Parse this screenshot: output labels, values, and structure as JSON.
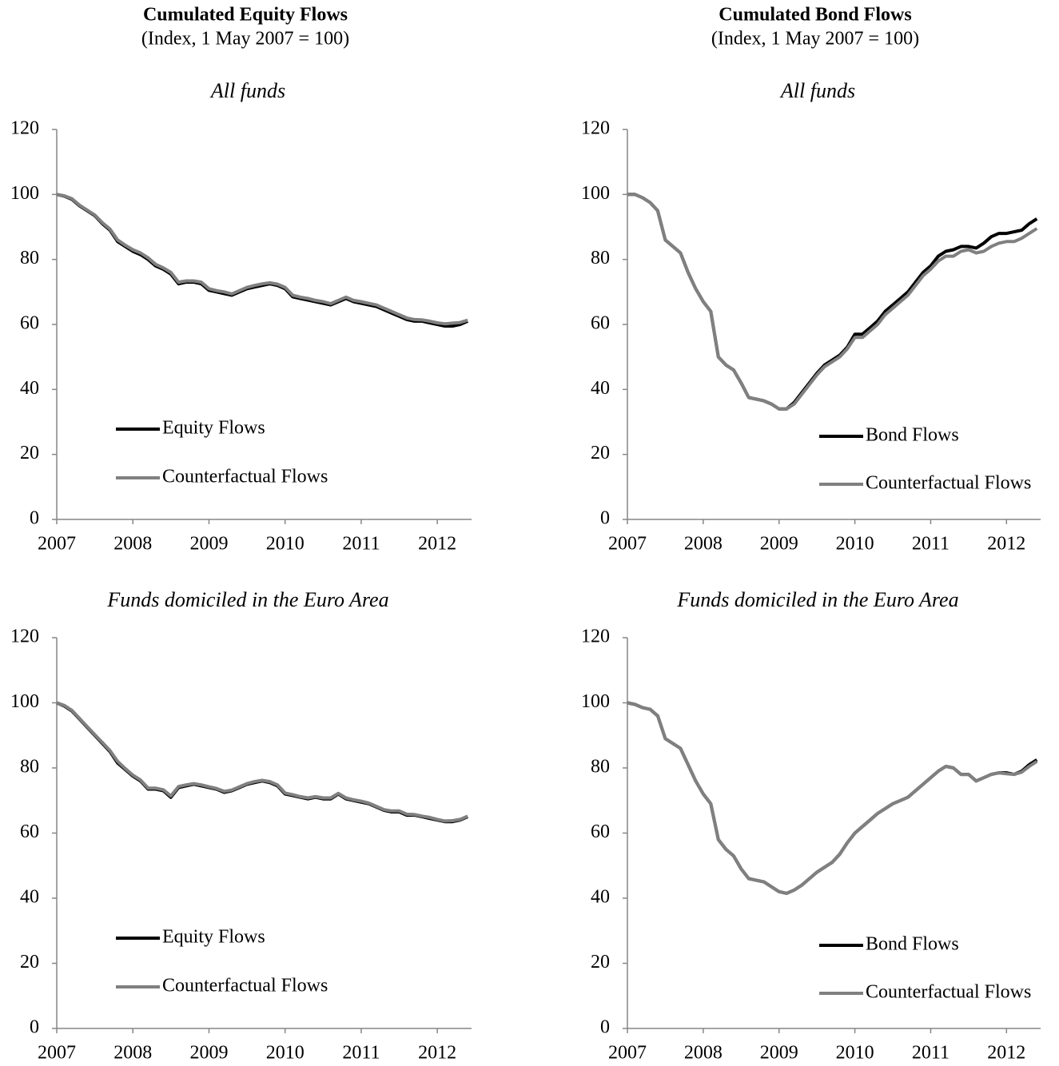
{
  "columns": [
    {
      "title": "Cumulated Equity Flows",
      "subtitle": "(Index, 1 May 2007 = 100)"
    },
    {
      "title": "Cumulated Bond Flows",
      "subtitle": "(Index, 1 May 2007 = 100)"
    }
  ],
  "chart_data": [
    {
      "type": "line",
      "title": "All funds",
      "legend": "lower left",
      "xlim": [
        2007,
        2012.45
      ],
      "xticks": [
        2007,
        2008,
        2009,
        2010,
        2011,
        2012
      ],
      "ylim": [
        0,
        120
      ],
      "yticks": [
        0,
        20,
        40,
        60,
        80,
        100,
        120
      ],
      "x": [
        2007,
        2007.1,
        2007.2,
        2007.3,
        2007.4,
        2007.5,
        2007.6,
        2007.7,
        2007.8,
        2007.9,
        2008,
        2008.1,
        2008.2,
        2008.3,
        2008.4,
        2008.5,
        2008.6,
        2008.7,
        2008.8,
        2008.9,
        2009,
        2009.1,
        2009.2,
        2009.3,
        2009.4,
        2009.5,
        2009.6,
        2009.7,
        2009.8,
        2009.9,
        2010,
        2010.1,
        2010.2,
        2010.3,
        2010.4,
        2010.5,
        2010.6,
        2010.7,
        2010.8,
        2010.9,
        2011,
        2011.1,
        2011.2,
        2011.3,
        2011.4,
        2011.5,
        2011.6,
        2011.7,
        2011.8,
        2011.9,
        2012,
        2012.1,
        2012.2,
        2012.3,
        2012.4
      ],
      "series": [
        {
          "name": "Equity Flows",
          "color": "#000000",
          "values": [
            100,
            99.5,
            98.5,
            96.5,
            95,
            93.5,
            91,
            89,
            85.5,
            84,
            82.5,
            81.5,
            80,
            78,
            77,
            75.5,
            72.5,
            73,
            73,
            72.5,
            70.5,
            70,
            69.5,
            69,
            70,
            71,
            71.5,
            72,
            72.5,
            72,
            71,
            68.5,
            68,
            67.5,
            67,
            66.5,
            66,
            67,
            68,
            67,
            66.5,
            66,
            65.5,
            64.5,
            63.5,
            62.5,
            61.5,
            61,
            61,
            60.5,
            60,
            59.5,
            59.5,
            60,
            61
          ]
        },
        {
          "name": "Counterfactual Flows",
          "color": "#808080",
          "values": [
            100,
            99.6,
            98.7,
            96.7,
            95.2,
            93.7,
            91.3,
            89.3,
            86,
            84.4,
            83,
            82,
            80.5,
            78.5,
            77.4,
            76,
            73,
            73.4,
            73.4,
            73,
            71,
            70.4,
            70,
            69.4,
            70.4,
            71.4,
            72,
            72.5,
            72.8,
            72.4,
            71.4,
            69,
            68.4,
            68,
            67.4,
            67,
            66.4,
            67.4,
            68.4,
            67.4,
            67,
            66.5,
            66,
            65,
            64,
            63,
            62,
            61.5,
            61.4,
            61,
            60.5,
            60.2,
            60.4,
            60.6,
            61.3
          ]
        }
      ]
    },
    {
      "type": "line",
      "title": "All funds",
      "legend": "lower right",
      "xlim": [
        2007,
        2012.45
      ],
      "xticks": [
        2007,
        2008,
        2009,
        2010,
        2011,
        2012
      ],
      "ylim": [
        0,
        120
      ],
      "yticks": [
        0,
        20,
        40,
        60,
        80,
        100,
        120
      ],
      "x": [
        2007,
        2007.1,
        2007.2,
        2007.3,
        2007.4,
        2007.5,
        2007.6,
        2007.7,
        2007.8,
        2007.9,
        2008,
        2008.1,
        2008.2,
        2008.3,
        2008.4,
        2008.5,
        2008.6,
        2008.7,
        2008.8,
        2008.9,
        2009,
        2009.1,
        2009.2,
        2009.3,
        2009.4,
        2009.5,
        2009.6,
        2009.7,
        2009.8,
        2009.9,
        2010,
        2010.1,
        2010.2,
        2010.3,
        2010.4,
        2010.5,
        2010.6,
        2010.7,
        2010.8,
        2010.9,
        2011,
        2011.1,
        2011.2,
        2011.3,
        2011.4,
        2011.5,
        2011.6,
        2011.7,
        2011.8,
        2011.9,
        2012,
        2012.1,
        2012.2,
        2012.3,
        2012.4
      ],
      "series": [
        {
          "name": "Bond Flows",
          "color": "#000000",
          "values": [
            100,
            100,
            99,
            97.5,
            95,
            86,
            84,
            82,
            76,
            71,
            67,
            64,
            50,
            47.5,
            46,
            42,
            37.5,
            37,
            36.5,
            35.5,
            34,
            34,
            36,
            39,
            42,
            45,
            47.5,
            49,
            50.5,
            53,
            57,
            57,
            59,
            61,
            64,
            66,
            68,
            70,
            73,
            76,
            78,
            81,
            82.5,
            83,
            84,
            84,
            83.5,
            85,
            87,
            88,
            88,
            88.5,
            89,
            91,
            92.5
          ]
        },
        {
          "name": "Counterfactual Flows",
          "color": "#808080",
          "values": [
            100,
            100,
            99,
            97.5,
            95,
            86,
            84,
            82,
            76,
            71,
            67,
            64,
            50,
            47.5,
            46,
            42,
            37.5,
            37,
            36.5,
            35.5,
            34,
            34,
            35.5,
            38.5,
            41.5,
            44.5,
            47,
            48.5,
            50,
            52.5,
            56,
            56,
            58,
            60,
            63,
            65,
            67,
            69,
            72,
            75,
            77,
            79.5,
            81,
            81,
            82.5,
            83,
            82,
            82.5,
            84,
            85,
            85.5,
            85.5,
            86.5,
            88,
            89.5
          ]
        }
      ]
    },
    {
      "type": "line",
      "title": "Funds domiciled in the Euro Area",
      "legend": "lower left",
      "xlim": [
        2007,
        2012.45
      ],
      "xticks": [
        2007,
        2008,
        2009,
        2010,
        2011,
        2012
      ],
      "ylim": [
        0,
        120
      ],
      "yticks": [
        0,
        20,
        40,
        60,
        80,
        100,
        120
      ],
      "x": [
        2007,
        2007.1,
        2007.2,
        2007.3,
        2007.4,
        2007.5,
        2007.6,
        2007.7,
        2007.8,
        2007.9,
        2008,
        2008.1,
        2008.2,
        2008.3,
        2008.4,
        2008.5,
        2008.6,
        2008.7,
        2008.8,
        2008.9,
        2009,
        2009.1,
        2009.2,
        2009.3,
        2009.4,
        2009.5,
        2009.6,
        2009.7,
        2009.8,
        2009.9,
        2010,
        2010.1,
        2010.2,
        2010.3,
        2010.4,
        2010.5,
        2010.6,
        2010.7,
        2010.8,
        2010.9,
        2011,
        2011.1,
        2011.2,
        2011.3,
        2011.4,
        2011.5,
        2011.6,
        2011.7,
        2011.8,
        2011.9,
        2012,
        2012.1,
        2012.2,
        2012.3,
        2012.4
      ],
      "series": [
        {
          "name": "Equity Flows",
          "color": "#000000",
          "values": [
            100,
            99,
            97.5,
            95,
            92.5,
            90,
            87.5,
            85,
            81.5,
            79.5,
            77.5,
            76,
            73.5,
            73.5,
            73,
            71,
            74,
            74.5,
            75,
            74.5,
            74,
            73.5,
            72.5,
            73,
            74,
            75,
            75.5,
            76,
            75.5,
            74.5,
            72,
            71.5,
            71,
            70.5,
            71,
            70.5,
            70.5,
            72,
            70.5,
            70,
            69.5,
            69,
            68,
            67,
            66.5,
            66.5,
            65.5,
            65.5,
            65,
            64.5,
            64,
            63.5,
            63.5,
            64,
            65
          ]
        },
        {
          "name": "Counterfactual Flows",
          "color": "#808080",
          "values": [
            100,
            99.2,
            97.7,
            95.2,
            92.7,
            90.2,
            87.8,
            85.3,
            82,
            79.8,
            77.8,
            76.3,
            73.8,
            73.8,
            73.3,
            71.4,
            74.3,
            74.8,
            75.2,
            74.8,
            74.2,
            73.7,
            72.8,
            73.2,
            74.2,
            75.2,
            75.8,
            76.2,
            75.8,
            74.8,
            72.3,
            71.8,
            71.2,
            70.8,
            71.2,
            70.8,
            70.8,
            72.2,
            70.8,
            70.2,
            69.8,
            69.2,
            68.2,
            67.2,
            66.8,
            66.8,
            65.8,
            65.7,
            65.2,
            64.8,
            64.2,
            63.7,
            63.8,
            64.2,
            65.2
          ]
        }
      ]
    },
    {
      "type": "line",
      "title": "Funds domiciled in the Euro Area",
      "legend": "lower right",
      "xlim": [
        2007,
        2012.45
      ],
      "xticks": [
        2007,
        2008,
        2009,
        2010,
        2011,
        2012
      ],
      "ylim": [
        0,
        120
      ],
      "yticks": [
        0,
        20,
        40,
        60,
        80,
        100,
        120
      ],
      "x": [
        2007,
        2007.1,
        2007.2,
        2007.3,
        2007.4,
        2007.5,
        2007.6,
        2007.7,
        2007.8,
        2007.9,
        2008,
        2008.1,
        2008.2,
        2008.3,
        2008.4,
        2008.5,
        2008.6,
        2008.7,
        2008.8,
        2008.9,
        2009,
        2009.1,
        2009.2,
        2009.3,
        2009.4,
        2009.5,
        2009.6,
        2009.7,
        2009.8,
        2009.9,
        2010,
        2010.1,
        2010.2,
        2010.3,
        2010.4,
        2010.5,
        2010.6,
        2010.7,
        2010.8,
        2010.9,
        2011,
        2011.1,
        2011.2,
        2011.3,
        2011.4,
        2011.5,
        2011.6,
        2011.7,
        2011.8,
        2011.9,
        2012,
        2012.1,
        2012.2,
        2012.3,
        2012.4
      ],
      "series": [
        {
          "name": "Bond Flows",
          "color": "#000000",
          "values": [
            100,
            99.5,
            98.5,
            98,
            96,
            89,
            87.5,
            86,
            81,
            76,
            72,
            69,
            58,
            55,
            53,
            49,
            46,
            45.5,
            45,
            43.5,
            42,
            41.5,
            42.5,
            44,
            46,
            48,
            49.5,
            51,
            53.5,
            57,
            60,
            62,
            64,
            66,
            67.5,
            69,
            70,
            71,
            73,
            75,
            77,
            79,
            80.5,
            80,
            78,
            78,
            76,
            77,
            78,
            78.5,
            78.5,
            78,
            79,
            81,
            82.5
          ]
        },
        {
          "name": "Counterfactual Flows",
          "color": "#808080",
          "values": [
            100,
            99.5,
            98.5,
            98,
            96,
            89,
            87.5,
            86,
            81,
            76,
            72,
            69,
            58,
            55,
            53,
            49,
            46,
            45.5,
            45,
            43.5,
            42,
            41.5,
            42.5,
            44,
            46,
            48,
            49.5,
            51,
            53.5,
            57,
            60,
            62,
            64,
            66,
            67.5,
            69,
            70,
            71,
            73,
            75,
            77,
            79,
            80.5,
            80,
            78,
            78,
            76,
            77,
            78,
            78.5,
            78.2,
            78,
            78.7,
            80.5,
            82
          ]
        }
      ]
    }
  ]
}
